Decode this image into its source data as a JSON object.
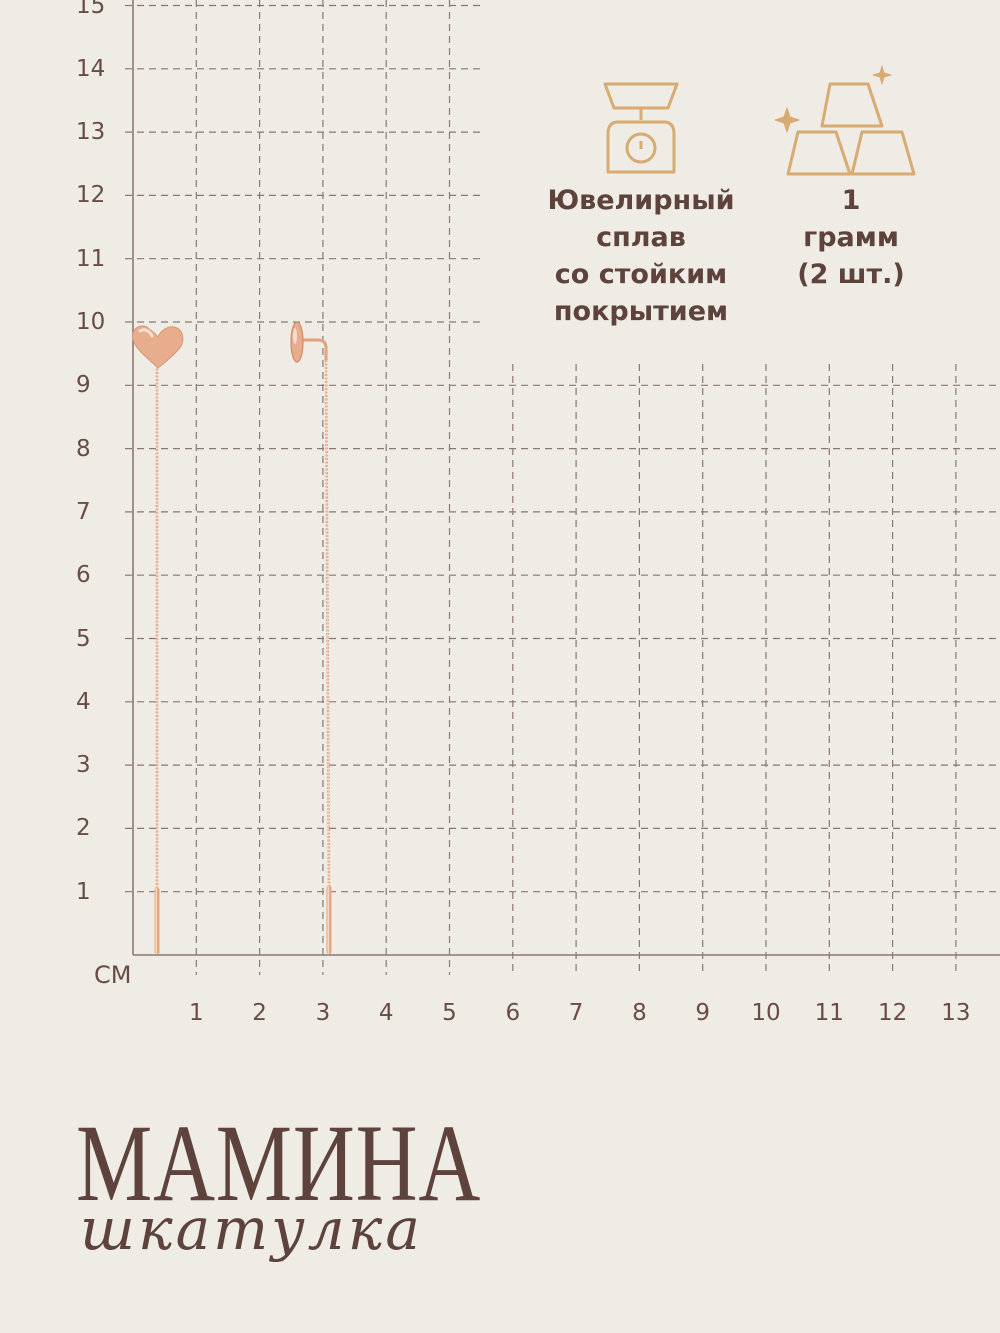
{
  "scale": {
    "unit": "СМ",
    "y_labels": [
      "15",
      "14",
      "13",
      "12",
      "11",
      "10",
      "9",
      "8",
      "7",
      "6",
      "5",
      "4",
      "3",
      "2",
      "1"
    ],
    "x_labels": [
      "1",
      "2",
      "3",
      "4",
      "5",
      "6",
      "7",
      "8",
      "9",
      "10",
      "11",
      "12",
      "13"
    ]
  },
  "features": [
    {
      "icon": "kitchen-scale-icon",
      "lines": [
        "Ювелирный",
        "сплав",
        "со стойким",
        "покрытием"
      ]
    },
    {
      "icon": "gold-bars-icon",
      "lines": [
        "1",
        "грамм",
        "(2 шт.)"
      ]
    }
  ],
  "product": {
    "name": "threader-earrings",
    "metal_color": "#e0a27f",
    "pendants": [
      "heart-pendant",
      "round-stud"
    ]
  },
  "brand": {
    "name": "МАМИНА",
    "tagline": "шкатулка",
    "color": "#5e423c"
  },
  "colors": {
    "background": "#efebe5",
    "grid": "#8b7773",
    "icon": "#d8ab72",
    "text": "#5e423c"
  }
}
